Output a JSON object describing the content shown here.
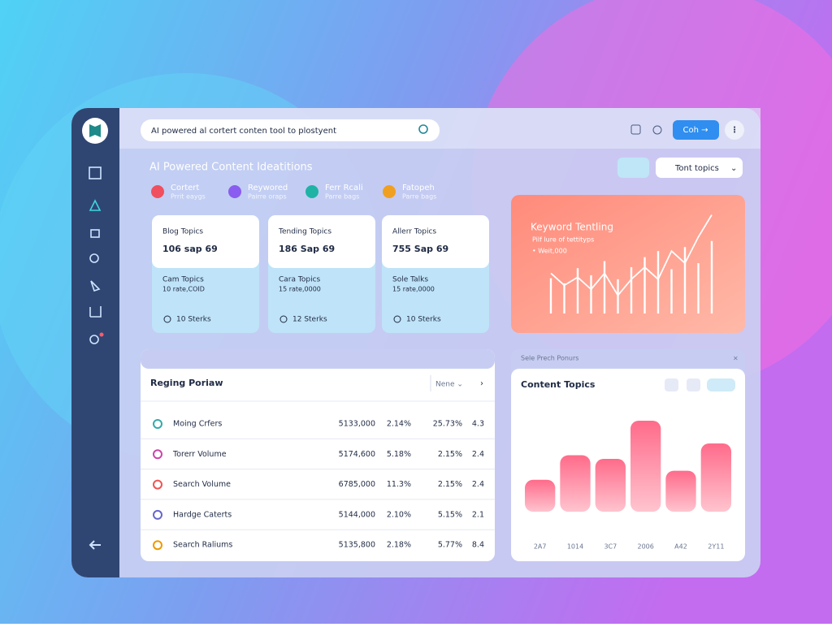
{
  "search": {
    "placeholder": "AI powered al cortert conten tool to plostyent"
  },
  "topbar": {
    "button": "Coh →"
  },
  "heading": "AI Powered Content Ideatitions",
  "toolbar": {
    "select": "Tont topics"
  },
  "legend": [
    {
      "title": "Cortert",
      "sub": "Prrit eaygs",
      "color": "#ef4f5f"
    },
    {
      "title": "Reywored",
      "sub": "Pairre oraps",
      "color": "#8a5cf0"
    },
    {
      "title": "Ferr Rcali",
      "sub": "Parre bags",
      "color": "#1fb3a5"
    },
    {
      "title": "Fatopeh",
      "sub": "Parre bags",
      "color": "#f0a020"
    }
  ],
  "cards": [
    {
      "title": "Blog Topics",
      "value": "106 sap 69",
      "sub_title": "Cam Topics",
      "sub_value": "10 rate,COID",
      "footer": "10 Sterks"
    },
    {
      "title": "Tending Topics",
      "value": "186 Sap 69",
      "sub_title": "Cara Topics",
      "sub_value": "15 rate,0000",
      "footer": "12 Sterks"
    },
    {
      "title": "Allerr Topics",
      "value": "755 Sap 69",
      "sub_title": "Sole Talks",
      "sub_value": "15 rate,0000",
      "footer": "10 Sterks"
    }
  ],
  "keyword_trending": {
    "title": "Keyword Tentling",
    "subtitle": "Pilf lure of tettityps",
    "note": "• Weit,000",
    "bar_values": [
      35,
      30,
      45,
      38,
      52,
      34,
      46,
      56,
      62,
      44,
      66,
      50,
      72
    ],
    "line_values": [
      40,
      28,
      36,
      24,
      40,
      18,
      34,
      46,
      34,
      62,
      50,
      76,
      98
    ]
  },
  "table": {
    "title": "Reging Poriaw",
    "filter": "Nene ⌄",
    "rows": [
      [
        "Moing Crfers",
        "5133,000",
        "2.14%",
        "25.73%",
        "4.3"
      ],
      [
        "Torerr Volume",
        "5174,600",
        "5.18%",
        "2.15%",
        "2.4"
      ],
      [
        "Search Volume",
        "6785,000",
        "11.3%",
        "2.15%",
        "2.4"
      ],
      [
        "Hardge Caterts",
        "5144,000",
        "2.10%",
        "5.15%",
        "2.1"
      ],
      [
        "Search Raliums",
        "5135,800",
        "2.18%",
        "5.77%",
        "8.4"
      ]
    ]
  },
  "content_topics": {
    "strip": "Sele Prech Ponurs",
    "title": "Content Topics",
    "categories": [
      "2A7",
      "1014",
      "3C7",
      "2006",
      "A42",
      "2Y11"
    ],
    "values": [
      35,
      62,
      58,
      100,
      45,
      75
    ]
  }
}
